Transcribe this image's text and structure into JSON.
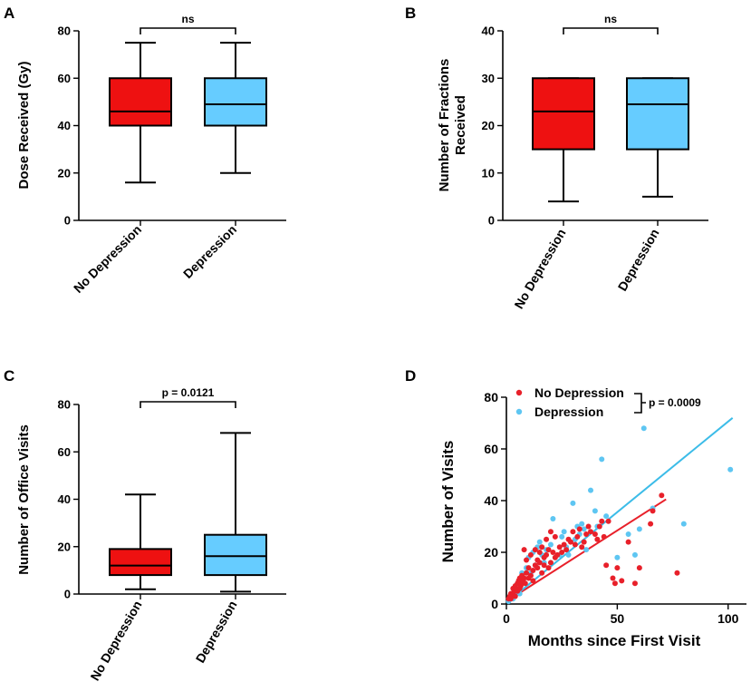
{
  "colors": {
    "no_depression": "#ee1111",
    "depression": "#66ccff",
    "no_depression_points": "#e8202a",
    "depression_points": "#5ec6f2",
    "regression_no_depression": "#e8202a",
    "regression_depression": "#3cbce8"
  },
  "panels": [
    {
      "letter": "A",
      "chart_data": {
        "type": "box",
        "ylabel": "Dose Received (Gy)",
        "ylim": [
          0,
          80
        ],
        "yticks": [
          0,
          20,
          40,
          60,
          80
        ],
        "categories": [
          "No Depression",
          "Depression"
        ],
        "boxes": [
          {
            "name": "No Depression",
            "min": 16,
            "q1": 40,
            "median": 46,
            "q3": 60,
            "max": 75
          },
          {
            "name": "Depression",
            "min": 20,
            "q1": 40,
            "median": 49,
            "q3": 60,
            "max": 75
          }
        ],
        "significance": "ns"
      }
    },
    {
      "letter": "B",
      "chart_data": {
        "type": "box",
        "ylabel_lines": [
          "Number of Fractions",
          "Received"
        ],
        "ylim": [
          0,
          40
        ],
        "yticks": [
          0,
          10,
          20,
          30,
          40
        ],
        "categories": [
          "No Depression",
          "Depression"
        ],
        "boxes": [
          {
            "name": "No Depression",
            "min": 4,
            "q1": 15,
            "median": 23,
            "q3": 30,
            "max": 30
          },
          {
            "name": "Depression",
            "min": 5,
            "q1": 15,
            "median": 24.5,
            "q3": 30,
            "max": 30
          }
        ],
        "significance": "ns"
      }
    },
    {
      "letter": "C",
      "chart_data": {
        "type": "box",
        "ylabel": "Number of Office Visits",
        "ylim": [
          0,
          80
        ],
        "yticks": [
          0,
          20,
          40,
          60,
          80
        ],
        "categories": [
          "No Depression",
          "Depression"
        ],
        "boxes": [
          {
            "name": "No Depression",
            "min": 2,
            "q1": 8,
            "median": 12,
            "q3": 19,
            "max": 42
          },
          {
            "name": "Depression",
            "min": 1,
            "q1": 8,
            "median": 16,
            "q3": 25,
            "max": 68
          }
        ],
        "significance": "p = 0.0121"
      }
    },
    {
      "letter": "D",
      "chart_data": {
        "type": "scatter",
        "xlabel": "Months since First Visit",
        "ylabel": "Number of Visits",
        "xlim": [
          0,
          105
        ],
        "ylim": [
          0,
          80
        ],
        "xticks": [
          0,
          50,
          100
        ],
        "yticks": [
          0,
          20,
          40,
          60,
          80
        ],
        "significance": "p = 0.0009",
        "series": [
          {
            "name": "No Depression",
            "points": [
              [
                1,
                2
              ],
              [
                1.5,
                3
              ],
              [
                2,
                2
              ],
              [
                2,
                4
              ],
              [
                2.5,
                3
              ],
              [
                3,
                4
              ],
              [
                3,
                6
              ],
              [
                3.5,
                5
              ],
              [
                4,
                3
              ],
              [
                4,
                7
              ],
              [
                4.5,
                6
              ],
              [
                5,
                5
              ],
              [
                5,
                8
              ],
              [
                5.5,
                9
              ],
              [
                6,
                6
              ],
              [
                6,
                10
              ],
              [
                6.5,
                7
              ],
              [
                7,
                8
              ],
              [
                7,
                11
              ],
              [
                7.5,
                9
              ],
              [
                8,
                10
              ],
              [
                8,
                21
              ],
              [
                8.5,
                8
              ],
              [
                9,
                12
              ],
              [
                9,
                17
              ],
              [
                10,
                10
              ],
              [
                10,
                14
              ],
              [
                11,
                11
              ],
              [
                11,
                19
              ],
              [
                12,
                13
              ],
              [
                12,
                9
              ],
              [
                13,
                15
              ],
              [
                13,
                21
              ],
              [
                14,
                14
              ],
              [
                14,
                17
              ],
              [
                15,
                16
              ],
              [
                15,
                20
              ],
              [
                16,
                12
              ],
              [
                16,
                22
              ],
              [
                17,
                15
              ],
              [
                17,
                18
              ],
              [
                18,
                19
              ],
              [
                18,
                25
              ],
              [
                19,
                14
              ],
              [
                19,
                21
              ],
              [
                20,
                16
              ],
              [
                20,
                28
              ],
              [
                21,
                20
              ],
              [
                22,
                18
              ],
              [
                22,
                26
              ],
              [
                23,
                19
              ],
              [
                24,
                22
              ],
              [
                25,
                20
              ],
              [
                26,
                23
              ],
              [
                27,
                21
              ],
              [
                28,
                25
              ],
              [
                29,
                24
              ],
              [
                30,
                28
              ],
              [
                31,
                23
              ],
              [
                32,
                26
              ],
              [
                33,
                29
              ],
              [
                34,
                22
              ],
              [
                35,
                24
              ],
              [
                36,
                27
              ],
              [
                37,
                30
              ],
              [
                38,
                28
              ],
              [
                40,
                27
              ],
              [
                41,
                25
              ],
              [
                42,
                30
              ],
              [
                43,
                32
              ],
              [
                44,
                26
              ],
              [
                45,
                15
              ],
              [
                46,
                32
              ],
              [
                48,
                10
              ],
              [
                49,
                8
              ],
              [
                50,
                14
              ],
              [
                52,
                9
              ],
              [
                55,
                24
              ],
              [
                58,
                8
              ],
              [
                60,
                14
              ],
              [
                65,
                31
              ],
              [
                66,
                36
              ],
              [
                70,
                42
              ],
              [
                77,
                12
              ]
            ]
          },
          {
            "name": "Depression",
            "points": [
              [
                1,
                1
              ],
              [
                2,
                3
              ],
              [
                3,
                2
              ],
              [
                4,
                5
              ],
              [
                5,
                8
              ],
              [
                6,
                4
              ],
              [
                7,
                12
              ],
              [
                8,
                10
              ],
              [
                9,
                14
              ],
              [
                10,
                18
              ],
              [
                11,
                12
              ],
              [
                12,
                20
              ],
              [
                13,
                15
              ],
              [
                14,
                22
              ],
              [
                15,
                24
              ],
              [
                16,
                19
              ],
              [
                17,
                16
              ],
              [
                18,
                21
              ],
              [
                20,
                23
              ],
              [
                21,
                33
              ],
              [
                22,
                18
              ],
              [
                24,
                19
              ],
              [
                25,
                26
              ],
              [
                26,
                28
              ],
              [
                27,
                22
              ],
              [
                28,
                19
              ],
              [
                30,
                39
              ],
              [
                31,
                25
              ],
              [
                32,
                30
              ],
              [
                33,
                27
              ],
              [
                34,
                31
              ],
              [
                35,
                29
              ],
              [
                36,
                21
              ],
              [
                38,
                44
              ],
              [
                40,
                36
              ],
              [
                41,
                30
              ],
              [
                43,
                56
              ],
              [
                45,
                34
              ],
              [
                50,
                18
              ],
              [
                55,
                27
              ],
              [
                58,
                19
              ],
              [
                60,
                29
              ],
              [
                62,
                68
              ],
              [
                66,
                37
              ],
              [
                80,
                31
              ],
              [
                101,
                52
              ]
            ]
          }
        ],
        "regression": [
          {
            "name": "No Depression",
            "x": [
              0,
              72
            ],
            "y": [
              1,
              40.5
            ]
          },
          {
            "name": "Depression",
            "x": [
              0,
              102
            ],
            "y": [
              0.5,
              72
            ]
          }
        ]
      }
    }
  ]
}
